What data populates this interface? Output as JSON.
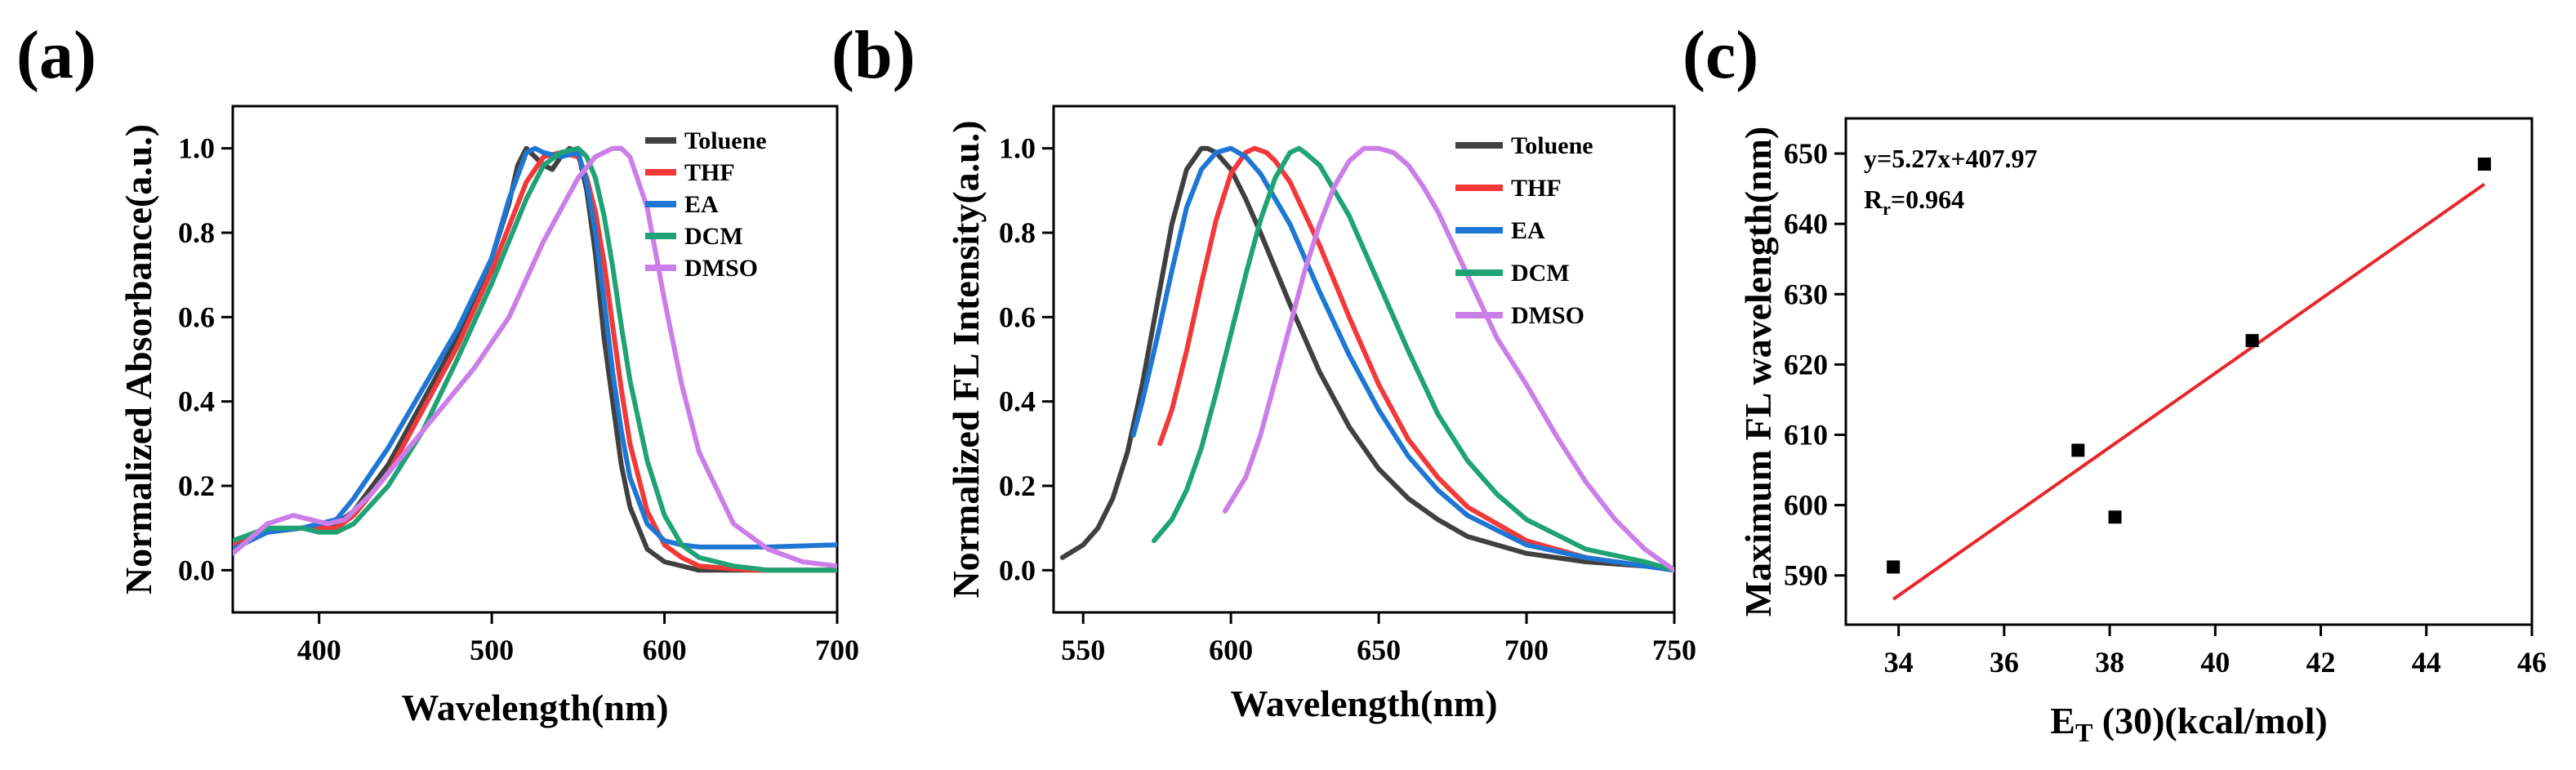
{
  "chart_data": [
    {
      "type": "line",
      "panel_label": "(a)",
      "xlabel": "Wavelength(nm)",
      "ylabel": "Normalized Absorbance(a.u.)",
      "xlim": [
        350,
        700
      ],
      "ylim": [
        -0.1,
        1.1
      ],
      "xticks": [
        400,
        500,
        600,
        700
      ],
      "xtick_labels": [
        "400",
        "500",
        "600",
        "700"
      ],
      "yticks": [
        0.0,
        0.2,
        0.4,
        0.6,
        0.8,
        1.0
      ],
      "ytick_labels": [
        "0.0",
        "0.2",
        "0.4",
        "0.6",
        "0.8",
        "1.0"
      ],
      "legend_position": "top-right",
      "series": [
        {
          "name": "Toluene",
          "color": "#404040",
          "x": [
            350,
            370,
            390,
            400,
            410,
            420,
            440,
            460,
            480,
            500,
            510,
            515,
            520,
            525,
            530,
            535,
            540,
            545,
            550,
            555,
            560,
            565,
            570,
            575,
            580,
            590,
            600,
            620,
            650,
            700
          ],
          "y": [
            0.06,
            0.09,
            0.1,
            0.1,
            0.11,
            0.14,
            0.25,
            0.4,
            0.55,
            0.74,
            0.87,
            0.96,
            1.0,
            0.98,
            0.96,
            0.95,
            0.98,
            1.0,
            0.99,
            0.9,
            0.75,
            0.55,
            0.4,
            0.25,
            0.15,
            0.05,
            0.02,
            0.0,
            0.0,
            0.0
          ]
        },
        {
          "name": "THF",
          "color": "#f2393a",
          "x": [
            350,
            370,
            390,
            400,
            410,
            420,
            440,
            460,
            480,
            500,
            520,
            530,
            540,
            550,
            555,
            560,
            565,
            570,
            575,
            580,
            590,
            600,
            610,
            620,
            650,
            700
          ],
          "y": [
            0.06,
            0.09,
            0.1,
            0.1,
            0.1,
            0.13,
            0.23,
            0.38,
            0.53,
            0.71,
            0.92,
            0.98,
            0.99,
            0.98,
            0.93,
            0.85,
            0.73,
            0.58,
            0.43,
            0.3,
            0.14,
            0.06,
            0.03,
            0.01,
            0.0,
            0.0
          ]
        },
        {
          "name": "EA",
          "color": "#1f77d4",
          "x": [
            350,
            370,
            390,
            400,
            410,
            420,
            440,
            460,
            480,
            500,
            510,
            520,
            525,
            530,
            540,
            550,
            555,
            560,
            565,
            570,
            575,
            580,
            590,
            600,
            610,
            620,
            640,
            660,
            700
          ],
          "y": [
            0.05,
            0.09,
            0.1,
            0.11,
            0.12,
            0.17,
            0.29,
            0.43,
            0.57,
            0.74,
            0.88,
            0.99,
            1.0,
            0.99,
            0.98,
            0.99,
            0.92,
            0.8,
            0.64,
            0.47,
            0.33,
            0.22,
            0.11,
            0.07,
            0.06,
            0.055,
            0.055,
            0.055,
            0.06
          ]
        },
        {
          "name": "DCM",
          "color": "#1fa374",
          "x": [
            350,
            370,
            390,
            400,
            410,
            420,
            440,
            460,
            480,
            500,
            520,
            530,
            540,
            550,
            555,
            560,
            565,
            570,
            575,
            580,
            590,
            600,
            610,
            620,
            640,
            660,
            700
          ],
          "y": [
            0.07,
            0.1,
            0.1,
            0.09,
            0.09,
            0.11,
            0.2,
            0.33,
            0.5,
            0.68,
            0.88,
            0.96,
            0.99,
            1.0,
            0.98,
            0.93,
            0.84,
            0.72,
            0.58,
            0.45,
            0.26,
            0.13,
            0.06,
            0.03,
            0.01,
            0.0,
            0.0
          ]
        },
        {
          "name": "DMSO",
          "color": "#cc7ee8",
          "x": [
            350,
            370,
            385,
            395,
            405,
            415,
            430,
            450,
            470,
            490,
            510,
            530,
            550,
            560,
            570,
            575,
            580,
            590,
            600,
            610,
            620,
            640,
            660,
            680,
            700
          ],
          "y": [
            0.04,
            0.11,
            0.13,
            0.12,
            0.11,
            0.12,
            0.18,
            0.28,
            0.38,
            0.48,
            0.6,
            0.78,
            0.93,
            0.98,
            1.0,
            1.0,
            0.98,
            0.86,
            0.64,
            0.44,
            0.28,
            0.11,
            0.05,
            0.02,
            0.01
          ]
        }
      ]
    },
    {
      "type": "line",
      "panel_label": "(b)",
      "xlabel": "Wavelength(nm)",
      "ylabel": "Normalized FL Intensity(a.u.)",
      "xlim": [
        540,
        750
      ],
      "ylim": [
        -0.1,
        1.1
      ],
      "xticks": [
        550,
        600,
        650,
        700,
        750
      ],
      "xtick_labels": [
        "550",
        "600",
        "650",
        "700",
        "750"
      ],
      "yticks": [
        0.0,
        0.2,
        0.4,
        0.6,
        0.8,
        1.0
      ],
      "ytick_labels": [
        "0.0",
        "0.2",
        "0.4",
        "0.6",
        "0.8",
        "1.0"
      ],
      "legend_position": "top-right",
      "series": [
        {
          "name": "Toluene",
          "color": "#404040",
          "x": [
            543,
            550,
            555,
            560,
            565,
            570,
            575,
            580,
            585,
            590,
            592,
            595,
            600,
            605,
            610,
            620,
            630,
            640,
            650,
            660,
            670,
            680,
            700,
            720,
            740,
            750
          ],
          "y": [
            0.03,
            0.06,
            0.1,
            0.17,
            0.28,
            0.44,
            0.63,
            0.82,
            0.95,
            1.0,
            1.0,
            0.99,
            0.95,
            0.88,
            0.8,
            0.63,
            0.47,
            0.34,
            0.24,
            0.17,
            0.12,
            0.08,
            0.04,
            0.02,
            0.01,
            0.0
          ]
        },
        {
          "name": "THF",
          "color": "#f2393a",
          "x": [
            576,
            580,
            585,
            590,
            595,
            600,
            605,
            608,
            612,
            615,
            620,
            630,
            640,
            650,
            660,
            670,
            680,
            700,
            720,
            750
          ],
          "y": [
            0.3,
            0.38,
            0.52,
            0.68,
            0.83,
            0.94,
            0.99,
            1.0,
            0.99,
            0.97,
            0.92,
            0.77,
            0.6,
            0.44,
            0.31,
            0.22,
            0.15,
            0.07,
            0.03,
            0.0
          ]
        },
        {
          "name": "EA",
          "color": "#1f77d4",
          "x": [
            567,
            570,
            575,
            580,
            585,
            590,
            595,
            600,
            605,
            610,
            620,
            630,
            640,
            650,
            660,
            670,
            680,
            700,
            720,
            750
          ],
          "y": [
            0.32,
            0.4,
            0.55,
            0.71,
            0.86,
            0.95,
            0.99,
            1.0,
            0.98,
            0.94,
            0.82,
            0.66,
            0.51,
            0.38,
            0.27,
            0.19,
            0.13,
            0.06,
            0.03,
            0.0
          ]
        },
        {
          "name": "DCM",
          "color": "#1fa374",
          "x": [
            574,
            580,
            585,
            590,
            595,
            600,
            605,
            610,
            615,
            620,
            623,
            625,
            630,
            640,
            650,
            660,
            670,
            680,
            690,
            700,
            720,
            740,
            750
          ],
          "y": [
            0.07,
            0.12,
            0.19,
            0.29,
            0.42,
            0.56,
            0.7,
            0.83,
            0.93,
            0.99,
            1.0,
            0.99,
            0.96,
            0.84,
            0.68,
            0.52,
            0.37,
            0.26,
            0.18,
            0.12,
            0.05,
            0.02,
            0.0
          ]
        },
        {
          "name": "DMSO",
          "color": "#cc7ee8",
          "x": [
            598,
            605,
            610,
            615,
            620,
            625,
            630,
            635,
            640,
            645,
            650,
            655,
            660,
            665,
            670,
            680,
            690,
            700,
            710,
            720,
            730,
            740,
            750
          ],
          "y": [
            0.14,
            0.22,
            0.32,
            0.45,
            0.58,
            0.71,
            0.82,
            0.91,
            0.97,
            1.0,
            1.0,
            0.99,
            0.96,
            0.91,
            0.85,
            0.7,
            0.55,
            0.44,
            0.32,
            0.21,
            0.12,
            0.05,
            0.0
          ]
        }
      ]
    },
    {
      "type": "scatter",
      "panel_label": "(c)",
      "xlabel_main": "E",
      "xlabel_sub": "T",
      "xlabel_rest": " (30)(kcal/mol)",
      "ylabel": "Maximum FL wavelength(nm)",
      "xlim": [
        33,
        46
      ],
      "ylim": [
        583,
        655
      ],
      "xticks": [
        34,
        36,
        38,
        40,
        42,
        44,
        46
      ],
      "xtick_labels": [
        "34",
        "36",
        "38",
        "40",
        "42",
        "44",
        "46"
      ],
      "yticks": [
        590,
        600,
        610,
        620,
        630,
        640,
        650
      ],
      "ytick_labels": [
        "590",
        "600",
        "610",
        "620",
        "630",
        "640",
        "650"
      ],
      "points": {
        "x": [
          33.9,
          37.4,
          38.1,
          40.7,
          45.1
        ],
        "y": [
          591.2,
          607.8,
          598.3,
          623.4,
          648.5
        ]
      },
      "fit": {
        "slope": 5.27,
        "intercept": 407.97,
        "x_range": [
          33.9,
          45.1
        ],
        "color": "#e8262a"
      },
      "equation": "y=5.27x+407.97",
      "r_main": "R",
      "r_sub": "r",
      "r_rest": "=0.964"
    }
  ]
}
